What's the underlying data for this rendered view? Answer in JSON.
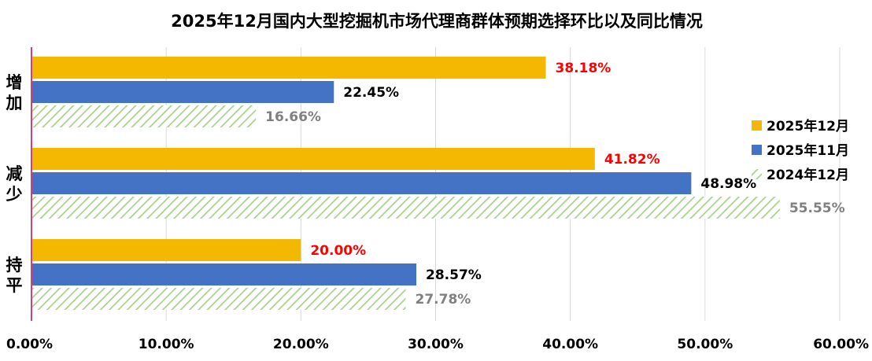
{
  "chart_data": {
    "type": "bar",
    "orientation": "horizontal",
    "title": "2025年12月国内大型挖掘机市场代理商群体预期选择环比以及同比情况",
    "categories": [
      "增加",
      "减少",
      "持平"
    ],
    "series": [
      {
        "name": "2025年12月",
        "values": [
          38.18,
          41.82,
          20.0
        ],
        "labels": [
          "38.18%",
          "41.82%",
          "20.00%"
        ],
        "color": "#F5B800",
        "label_color": "#FF0000",
        "pattern": "solid"
      },
      {
        "name": "2025年11月",
        "values": [
          22.45,
          48.98,
          28.57
        ],
        "labels": [
          "22.45%",
          "48.98%",
          "28.57%"
        ],
        "color": "#4472C4",
        "label_color": "#000000",
        "pattern": "solid"
      },
      {
        "name": "2024年12月",
        "values": [
          16.66,
          55.55,
          27.78
        ],
        "labels": [
          "16.66%",
          "55.55%",
          "27.78%"
        ],
        "color": "#A9D18E",
        "label_color": "#808080",
        "pattern": "diagonal-hatch"
      }
    ],
    "xlim": [
      0,
      60
    ],
    "xticks": [
      "0.00%",
      "10.00%",
      "20.00%",
      "30.00%",
      "40.00%",
      "50.00%",
      "60.00%"
    ],
    "grid": true,
    "legend_position": "right"
  }
}
